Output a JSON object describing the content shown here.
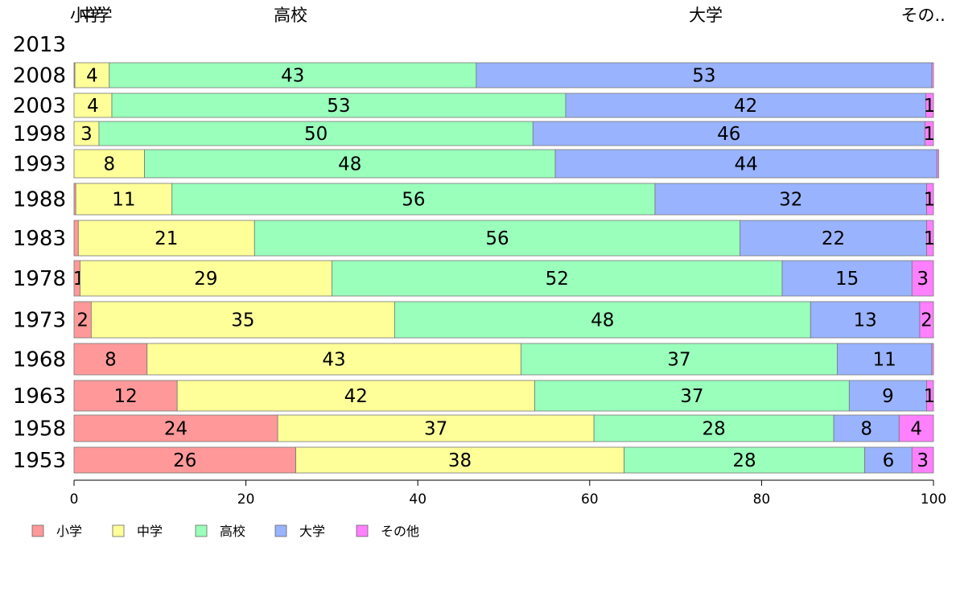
{
  "chart_data": {
    "type": "bar",
    "orientation": "horizontal",
    "stacked": true,
    "categories": [
      "2013",
      "2008",
      "2003",
      "1998",
      "1993",
      "1988",
      "1983",
      "1978",
      "1973",
      "1968",
      "1963",
      "1958",
      "1953"
    ],
    "series": [
      {
        "name": "小学",
        "color": "#ff9999",
        "values": [
          null,
          0.1,
          0,
          0,
          0,
          0.2,
          0.5,
          0.7,
          2,
          8.5,
          12,
          23.7,
          25.8
        ]
      },
      {
        "name": "中学",
        "color": "#ffff99",
        "values": [
          null,
          4,
          4.4,
          2.9,
          8.2,
          11.2,
          20.5,
          29.3,
          35.3,
          43.5,
          41.6,
          36.8,
          38.2
        ]
      },
      {
        "name": "高校",
        "color": "#99ffbb",
        "values": [
          null,
          42.7,
          52.8,
          50.5,
          47.8,
          56.2,
          56.5,
          52.4,
          48.4,
          36.8,
          36.6,
          27.9,
          28
        ]
      },
      {
        "name": "大学",
        "color": "#99b3ff",
        "values": [
          null,
          53,
          41.9,
          45.6,
          44.4,
          31.6,
          21.7,
          15.1,
          12.7,
          11.0,
          9.0,
          7.6,
          5.5
        ]
      },
      {
        "name": "その他",
        "color": "#ff80ff",
        "values": [
          null,
          0.2,
          0.9,
          1,
          0.2,
          0.8,
          0.8,
          2.5,
          1.6,
          0.2,
          0.8,
          4,
          2.5
        ]
      }
    ],
    "segment_labels": [
      [],
      [
        "",
        "4",
        "43",
        "53",
        ""
      ],
      [
        "",
        "4",
        "53",
        "42",
        "1"
      ],
      [
        "",
        "3",
        "50",
        "46",
        "1"
      ],
      [
        "",
        "8",
        "48",
        "44",
        ""
      ],
      [
        "",
        "11",
        "56",
        "32",
        "1"
      ],
      [
        "",
        "21",
        "56",
        "22",
        "1"
      ],
      [
        "1",
        "29",
        "52",
        "15",
        "3"
      ],
      [
        "2",
        "35",
        "48",
        "13",
        "2"
      ],
      [
        "8",
        "43",
        "37",
        "11",
        ""
      ],
      [
        "12",
        "42",
        "37",
        "9",
        "1"
      ],
      [
        "24",
        "37",
        "28",
        "8",
        "4"
      ],
      [
        "26",
        "38",
        "28",
        "6",
        "3"
      ]
    ],
    "top_labels": [
      {
        "text": "小学",
        "pos": 1.5
      },
      {
        "text": "中学",
        "pos": 2.5
      },
      {
        "text": "高校",
        "pos": 25.2
      },
      {
        "text": "大学",
        "pos": 73.5
      },
      {
        "text": "その..",
        "pos": 98.8
      }
    ],
    "xlim": [
      0,
      100
    ],
    "xticks": [
      "0",
      "20",
      "40",
      "60",
      "80",
      "100"
    ],
    "grid": false,
    "legend_position": "bottom-left"
  }
}
